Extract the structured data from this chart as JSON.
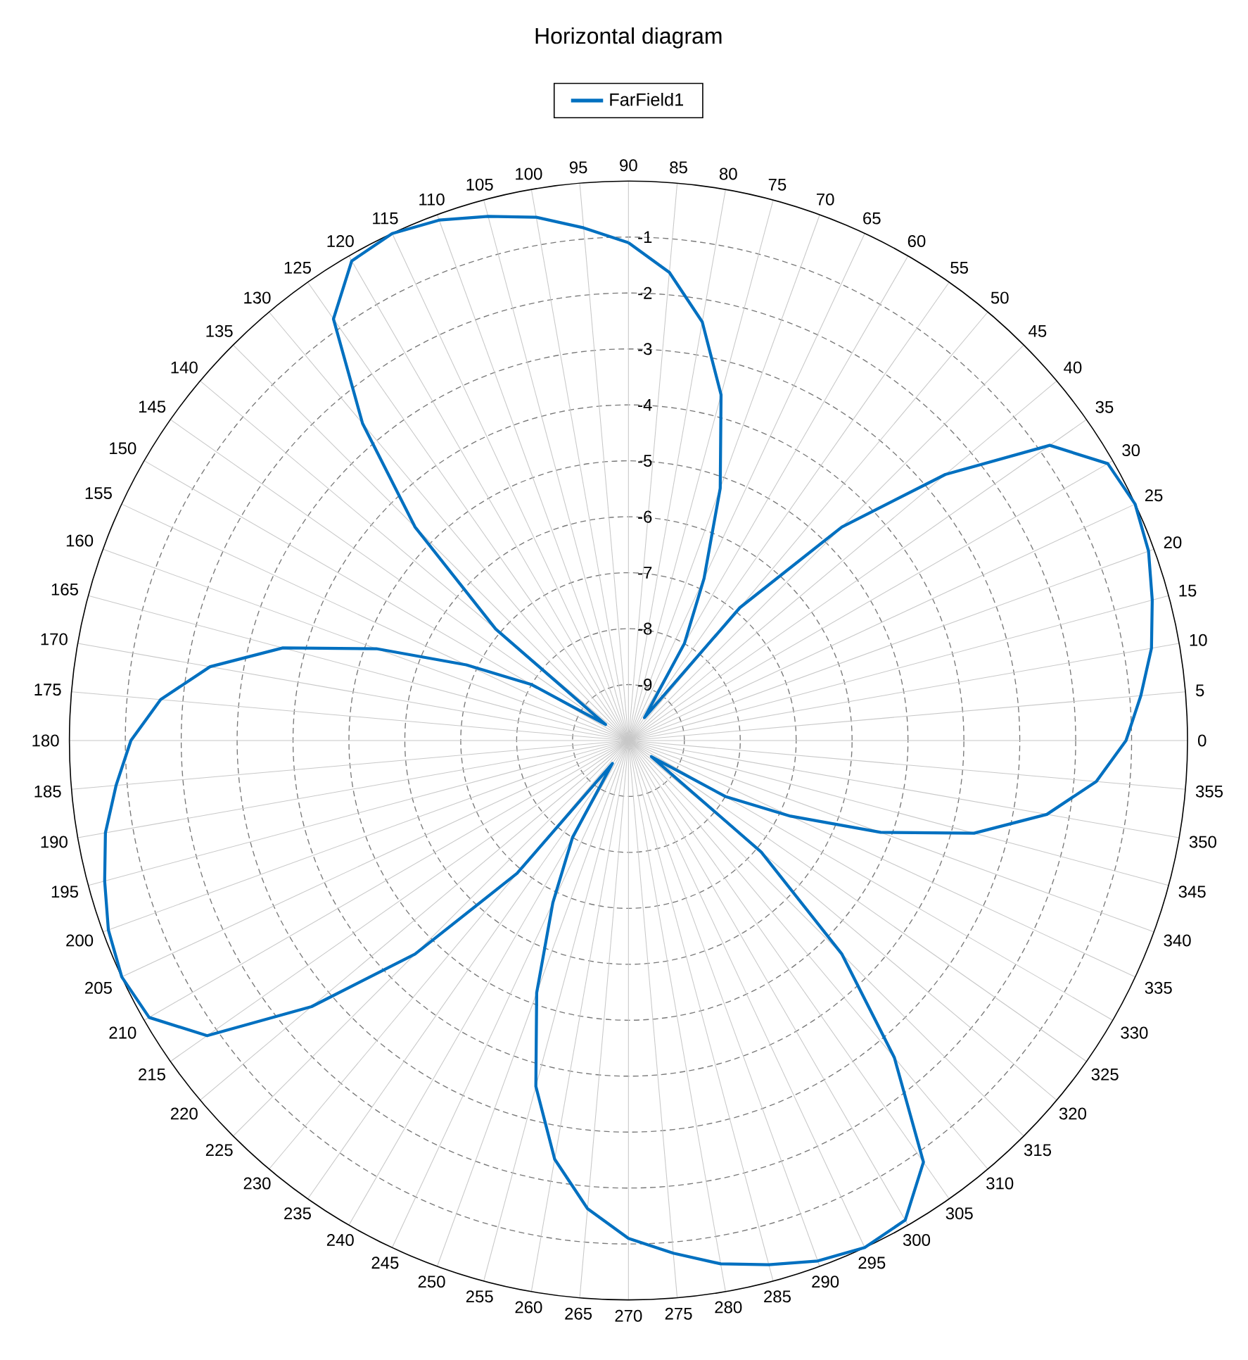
{
  "chart_data": {
    "type": "radar",
    "title": "Horizontal diagram",
    "categories": [
      "90",
      "85",
      "80",
      "75",
      "70",
      "65",
      "60",
      "55",
      "50",
      "45",
      "40",
      "35",
      "30",
      "25",
      "20",
      "15",
      "10",
      "5",
      "0",
      "355",
      "350",
      "345",
      "340",
      "335",
      "330",
      "325",
      "320",
      "315",
      "310",
      "305",
      "300",
      "295",
      "290",
      "285",
      "280",
      "275",
      "270",
      "265",
      "260",
      "255",
      "250",
      "245",
      "240",
      "235",
      "230",
      "225",
      "220",
      "215",
      "210",
      "205",
      "200",
      "195",
      "190",
      "185",
      "180",
      "175",
      "170",
      "165",
      "160",
      "155",
      "150",
      "145",
      "140",
      "135",
      "130",
      "125",
      "120",
      "115",
      "110",
      "105",
      "100",
      "95"
    ],
    "series": [
      {
        "name": "FarField1",
        "color": "#0070c0",
        "values": [
          -1.1,
          -1.6,
          -2.4,
          -3.6,
          -5.2,
          -6.8,
          -8.0,
          -9.5,
          -6.9,
          -4.6,
          -2.6,
          -0.8,
          -0.1,
          0,
          -0.1,
          -0.3,
          -0.5,
          -0.8,
          -1.1,
          -1.6,
          -2.4,
          -3.6,
          -5.2,
          -6.8,
          -8.0,
          -9.5,
          -6.9,
          -4.6,
          -2.6,
          -0.8,
          -0.1,
          0,
          -0.1,
          -0.3,
          -0.5,
          -0.8,
          -1.1,
          -1.6,
          -2.4,
          -3.6,
          -5.2,
          -6.8,
          -8.0,
          -9.5,
          -6.9,
          -4.6,
          -2.6,
          -0.8,
          -0.1,
          0,
          -0.1,
          -0.3,
          -0.5,
          -0.8,
          -1.1,
          -1.6,
          -2.4,
          -3.6,
          -5.2,
          -6.8,
          -8.0,
          -9.5,
          -6.9,
          -4.6,
          -2.6,
          -0.8,
          -0.1,
          0,
          -0.1,
          -0.3,
          -0.5,
          -0.8
        ]
      }
    ],
    "ylim": [
      -10,
      0
    ],
    "yticks": [
      -9,
      -8,
      -7,
      -6,
      -5,
      -4,
      -3,
      -2,
      -1
    ],
    "grid": true,
    "legend": "top"
  }
}
